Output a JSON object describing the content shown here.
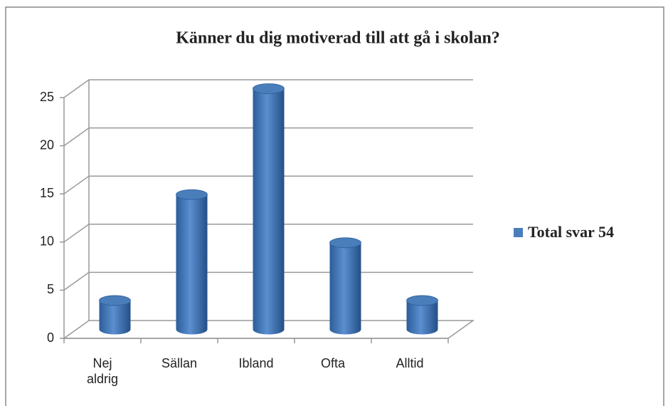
{
  "chart_data": {
    "type": "bar",
    "title": "Känner du dig motiverad till att gå i skolan?",
    "categories": [
      "Nej aldrig",
      "Sällan",
      "Ibland",
      "Ofta",
      "Alltid"
    ],
    "series": [
      {
        "name": "Total svar 54",
        "color": "#4a7ebb",
        "values": [
          3,
          14,
          25,
          9,
          3
        ]
      }
    ],
    "ylim": [
      0,
      25
    ],
    "yticks": [
      0,
      5,
      10,
      15,
      20,
      25
    ],
    "grid": true,
    "legend": "right"
  }
}
